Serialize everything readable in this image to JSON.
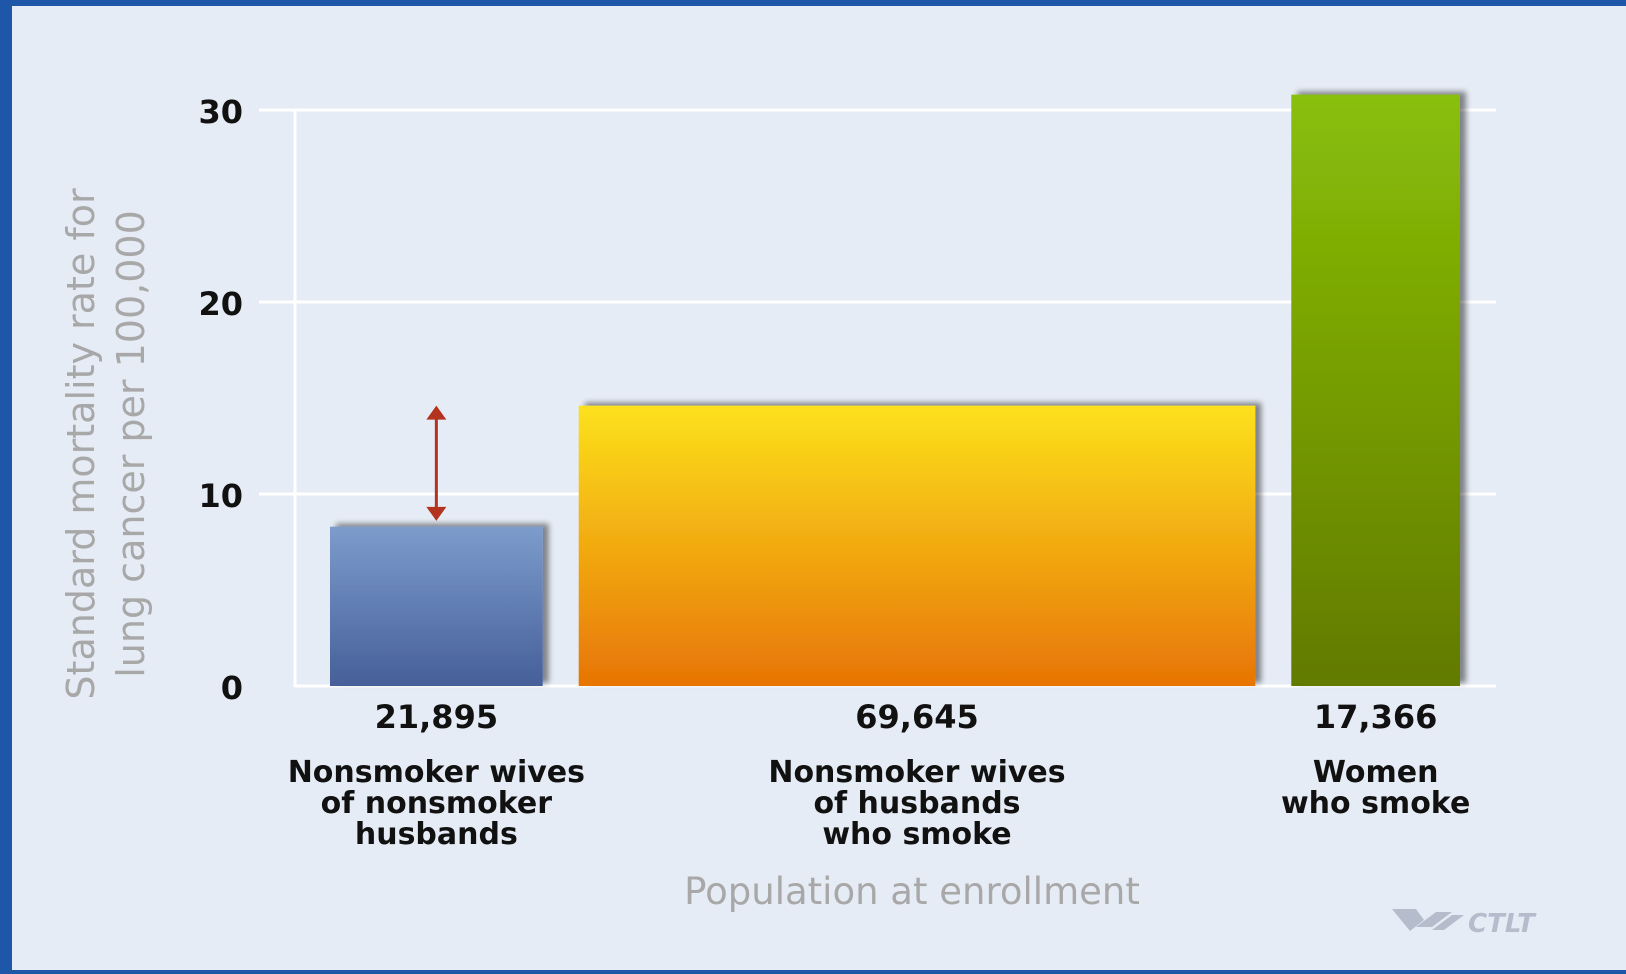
{
  "chart_data": {
    "type": "bar",
    "title": "",
    "xlabel": "Population at enrollment",
    "ylabel_lines": [
      "Standard mortality rate for",
      "lung cancer per 100,000"
    ],
    "ylim": [
      0,
      30
    ],
    "yticks": [
      0,
      10,
      20,
      30
    ],
    "grid": true,
    "variable_width": true,
    "bars": [
      {
        "label_lines": [
          "Nonsmoker wives",
          "of nonsmoker",
          "husbands"
        ],
        "population_label": "21,895",
        "population": 21895,
        "value": 8.3,
        "color_top": "#7c9ccc",
        "color_bottom": "#465f99"
      },
      {
        "label_lines": [
          "Nonsmoker wives",
          "of husbands",
          "who smoke"
        ],
        "population_label": "69,645",
        "population": 69645,
        "value": 14.6,
        "color_top": "#fce11c",
        "color_bottom": "#e77405"
      },
      {
        "label_lines": [
          "Women",
          "who smoke"
        ],
        "population_label": "17,366",
        "population": 17366,
        "value": 30.8,
        "color_top": "#89bf08",
        "color_bottom": "#627a00"
      }
    ],
    "annotation": {
      "type": "double-arrow",
      "bar_index": 0,
      "from_value": 8.6,
      "to_value": 14.6,
      "color": "#b3331f"
    }
  },
  "logo": {
    "text": "CTLT",
    "icon": "ctlt-logo-icon"
  },
  "colors": {
    "background": "#e6ecf5",
    "frame": "#1e56a8",
    "gridline": "#ffffff",
    "axis_title": "#a8a8a8",
    "tick_label": "#111111"
  }
}
